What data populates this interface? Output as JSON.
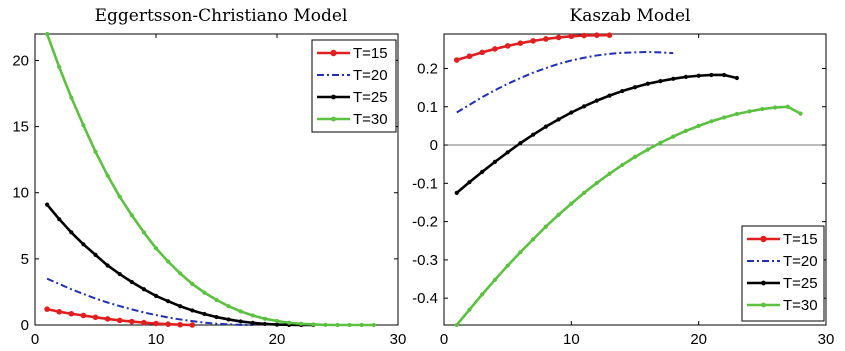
{
  "chart_data": [
    {
      "type": "line",
      "title": "Eggertsson-Christiano Model",
      "xlim": [
        0,
        30
      ],
      "ylim": [
        0,
        22
      ],
      "xticks": [
        0,
        10,
        20,
        30
      ],
      "yticks": [
        0,
        5,
        10,
        15,
        20
      ],
      "zero_line": false,
      "legend": "top-right",
      "series": [
        {
          "name": "T=15",
          "color": "#e02020",
          "style": "solid-dots",
          "x": [
            1,
            2,
            3,
            4,
            5,
            6,
            7,
            8,
            9,
            10,
            11,
            12,
            13
          ],
          "y": [
            1.2,
            1.0,
            0.85,
            0.72,
            0.58,
            0.46,
            0.35,
            0.26,
            0.18,
            0.11,
            0.06,
            0.02,
            0.0
          ]
        },
        {
          "name": "T=20",
          "color": "#2030b0",
          "style": "dashdot",
          "x": [
            1,
            2,
            3,
            4,
            5,
            6,
            7,
            8,
            9,
            10,
            11,
            12,
            13,
            14,
            15,
            16,
            17,
            18
          ],
          "y": [
            3.5,
            3.1,
            2.7,
            2.35,
            2.0,
            1.7,
            1.43,
            1.18,
            0.95,
            0.75,
            0.57,
            0.42,
            0.29,
            0.18,
            0.1,
            0.05,
            0.01,
            0.0
          ]
        },
        {
          "name": "T=25",
          "color": "#000000",
          "style": "solid-dots",
          "x": [
            1,
            2,
            3,
            4,
            5,
            6,
            7,
            8,
            9,
            10,
            11,
            12,
            13,
            14,
            15,
            16,
            17,
            18,
            19,
            20,
            21,
            22,
            23
          ],
          "y": [
            9.1,
            8.0,
            7.0,
            6.1,
            5.3,
            4.5,
            3.85,
            3.25,
            2.7,
            2.2,
            1.8,
            1.42,
            1.1,
            0.83,
            0.6,
            0.42,
            0.27,
            0.16,
            0.08,
            0.03,
            0.01,
            0.0,
            0.0
          ]
        },
        {
          "name": "T=30",
          "color": "#5cc040",
          "style": "solid-dots",
          "x": [
            1,
            2,
            3,
            4,
            5,
            6,
            7,
            8,
            9,
            10,
            11,
            12,
            13,
            14,
            15,
            16,
            17,
            18,
            19,
            20,
            21,
            22,
            23,
            24,
            25,
            26,
            27,
            28
          ],
          "y": [
            22.0,
            19.5,
            17.2,
            15.1,
            13.1,
            11.3,
            9.7,
            8.3,
            7.0,
            5.8,
            4.8,
            3.9,
            3.1,
            2.45,
            1.9,
            1.42,
            1.03,
            0.72,
            0.47,
            0.3,
            0.17,
            0.09,
            0.04,
            0.01,
            0.0,
            0.0,
            0.0,
            0.0
          ]
        }
      ]
    },
    {
      "type": "line",
      "title": "Kaszab Model",
      "xlim": [
        0,
        30
      ],
      "ylim": [
        -0.47,
        0.29
      ],
      "xticks": [
        0,
        10,
        20,
        30
      ],
      "yticks": [
        -0.4,
        -0.3,
        -0.2,
        -0.1,
        0,
        0.1,
        0.2
      ],
      "ytick_labels": [
        "-0.4",
        "-0.3",
        "-0.2",
        "-0.1",
        "0",
        "0.1",
        "0.2"
      ],
      "zero_line": true,
      "legend": "bottom-right",
      "series": [
        {
          "name": "T=15",
          "color": "#e02020",
          "style": "solid-dots",
          "x": [
            1,
            2,
            3,
            4,
            5,
            6,
            7,
            8,
            9,
            10,
            11,
            12,
            13
          ],
          "y": [
            0.222,
            0.232,
            0.242,
            0.251,
            0.259,
            0.266,
            0.272,
            0.277,
            0.281,
            0.284,
            0.286,
            0.287,
            0.287
          ]
        },
        {
          "name": "T=20",
          "color": "#2030b0",
          "style": "dashdot",
          "x": [
            1,
            2,
            3,
            4,
            5,
            6,
            7,
            8,
            9,
            10,
            11,
            12,
            13,
            14,
            15,
            16,
            17,
            18
          ],
          "y": [
            0.085,
            0.105,
            0.125,
            0.143,
            0.16,
            0.175,
            0.189,
            0.201,
            0.212,
            0.221,
            0.228,
            0.234,
            0.238,
            0.241,
            0.242,
            0.243,
            0.242,
            0.24
          ]
        },
        {
          "name": "T=25",
          "color": "#000000",
          "style": "solid-dots",
          "x": [
            1,
            2,
            3,
            4,
            5,
            6,
            7,
            8,
            9,
            10,
            11,
            12,
            13,
            14,
            15,
            16,
            17,
            18,
            19,
            20,
            21,
            22,
            23
          ],
          "y": [
            -0.125,
            -0.097,
            -0.07,
            -0.044,
            -0.019,
            0.005,
            0.027,
            0.048,
            0.067,
            0.085,
            0.101,
            0.116,
            0.129,
            0.141,
            0.151,
            0.16,
            0.167,
            0.173,
            0.178,
            0.181,
            0.183,
            0.183,
            0.175
          ]
        },
        {
          "name": "T=30",
          "color": "#5cc040",
          "style": "solid-dots",
          "x": [
            1,
            2,
            3,
            4,
            5,
            6,
            7,
            8,
            9,
            10,
            11,
            12,
            13,
            14,
            15,
            16,
            17,
            18,
            19,
            20,
            21,
            22,
            23,
            24,
            25,
            26,
            27,
            28
          ],
          "y": [
            -0.47,
            -0.43,
            -0.39,
            -0.352,
            -0.315,
            -0.28,
            -0.246,
            -0.213,
            -0.182,
            -0.153,
            -0.125,
            -0.099,
            -0.075,
            -0.052,
            -0.031,
            -0.012,
            0.006,
            0.022,
            0.037,
            0.05,
            0.062,
            0.072,
            0.081,
            0.088,
            0.094,
            0.098,
            0.1,
            0.082
          ]
        }
      ]
    }
  ]
}
